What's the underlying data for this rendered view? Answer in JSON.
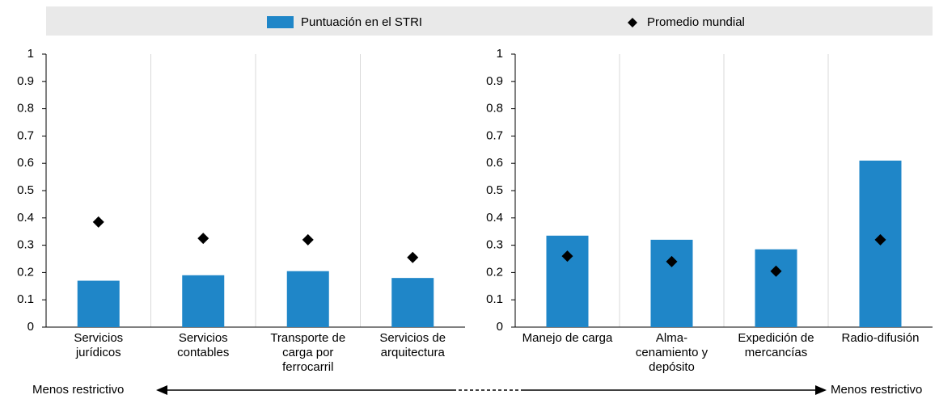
{
  "chart_data": [
    {
      "type": "bar",
      "categories": [
        "Servicios\njurídicos",
        "Servicios\ncontables",
        "Transporte de\ncarga por\nferrocarril",
        "Servicios de\narquitectura"
      ],
      "series": [
        {
          "name": "Puntuación en el STRI",
          "color": "#1f86c8",
          "values": [
            0.17,
            0.19,
            0.205,
            0.18
          ]
        },
        {
          "name": "Promedio mundial",
          "color": "#000000",
          "values": [
            0.385,
            0.325,
            0.32,
            0.255
          ]
        }
      ],
      "ylim": [
        0,
        1
      ],
      "yticks": [
        0,
        0.1,
        0.2,
        0.3,
        0.4,
        0.5,
        0.6,
        0.7,
        0.8,
        0.9,
        1
      ],
      "annotation": "Menos restrictivo"
    },
    {
      "type": "bar",
      "categories": [
        "Manejo de carga",
        "Alma-\ncenamiento y\ndepósito",
        "Expedición de\nmercancías",
        "Radio-difusión"
      ],
      "series": [
        {
          "color": "#1f86c8",
          "values": [
            0.335,
            0.32,
            0.285,
            0.61
          ]
        },
        {
          "color": "#000000",
          "values": [
            0.26,
            0.24,
            0.205,
            0.32
          ]
        }
      ],
      "ylim": [
        0,
        1
      ],
      "yticks": [
        0,
        0.1,
        0.2,
        0.3,
        0.4,
        0.5,
        0.6,
        0.7,
        0.8,
        0.9,
        1
      ],
      "annotation": "Menos restrictivo"
    }
  ]
}
